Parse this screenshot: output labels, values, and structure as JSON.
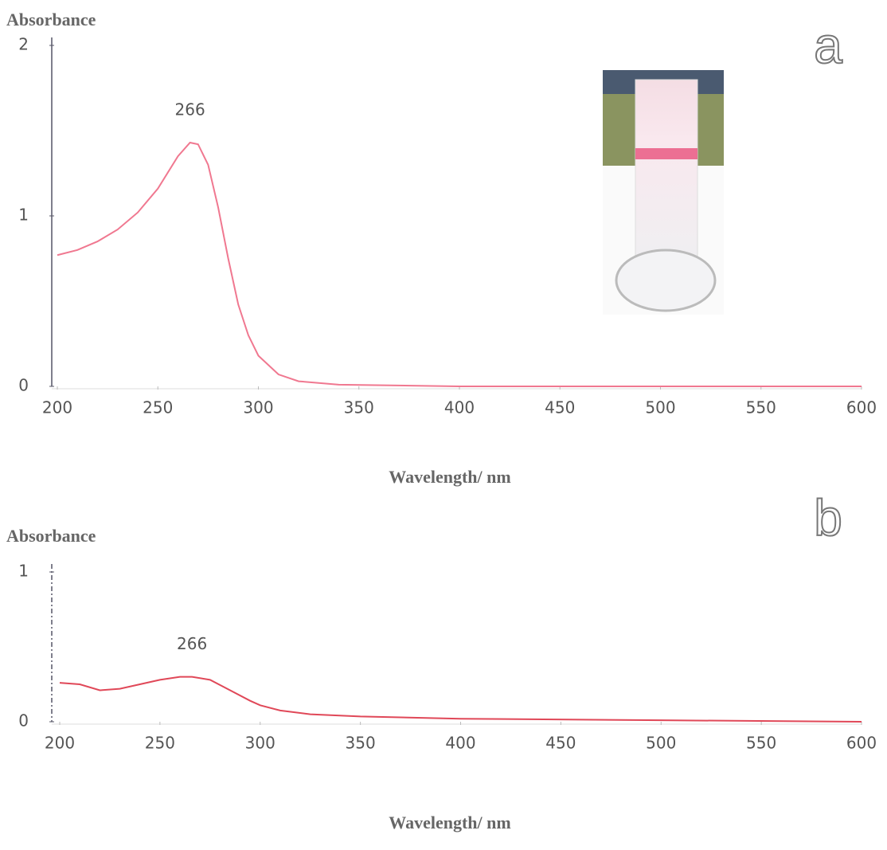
{
  "chart_data": [
    {
      "type": "line",
      "panel_label": "a",
      "y_label": "Absorbance",
      "x_label": "Wavelength/ nm",
      "x": [
        200,
        210,
        220,
        230,
        240,
        250,
        260,
        266,
        270,
        275,
        280,
        285,
        290,
        295,
        300,
        310,
        320,
        340,
        400,
        500,
        600
      ],
      "series": [
        {
          "color": "#f07890",
          "values": [
            0.77,
            0.8,
            0.85,
            0.92,
            1.02,
            1.16,
            1.35,
            1.43,
            1.42,
            1.3,
            1.05,
            0.75,
            0.48,
            0.3,
            0.18,
            0.07,
            0.03,
            0.01,
            0.0,
            0.0,
            0.0
          ]
        }
      ],
      "xlim": [
        200,
        600
      ],
      "xticks": [
        200,
        250,
        300,
        350,
        400,
        450,
        500,
        550,
        600
      ],
      "ylim": [
        0,
        2
      ],
      "yticks": [
        0,
        1,
        2
      ],
      "annotations": [
        {
          "x": 266,
          "label": "266"
        }
      ]
    },
    {
      "type": "line",
      "panel_label": "b",
      "y_label": "Absorbance",
      "x_label": "Wavelength/ nm",
      "x": [
        200,
        210,
        220,
        230,
        240,
        250,
        260,
        266,
        275,
        285,
        295,
        300,
        310,
        325,
        350,
        400,
        500,
        600
      ],
      "series": [
        {
          "color": "#e04858",
          "values": [
            0.26,
            0.25,
            0.21,
            0.22,
            0.25,
            0.28,
            0.3,
            0.3,
            0.28,
            0.21,
            0.14,
            0.11,
            0.075,
            0.05,
            0.035,
            0.02,
            0.01,
            0.0
          ]
        }
      ],
      "xlim": [
        200,
        600
      ],
      "xticks": [
        200,
        250,
        300,
        350,
        400,
        450,
        500,
        550,
        600
      ],
      "ylim": [
        0,
        1
      ],
      "yticks": [
        0,
        1
      ],
      "annotations": [
        {
          "x": 266,
          "label": "266"
        }
      ]
    }
  ]
}
